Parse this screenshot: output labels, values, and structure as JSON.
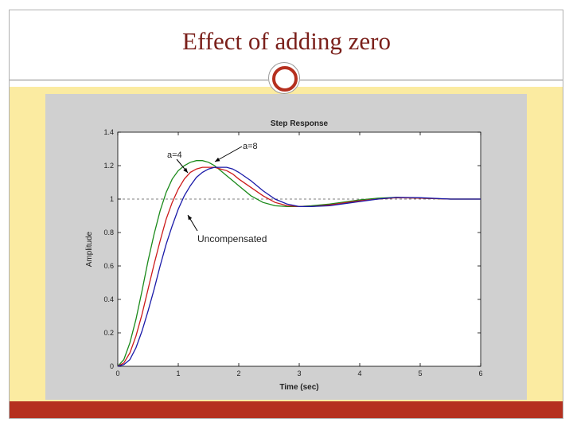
{
  "slide": {
    "title": "Effect of adding zero",
    "colors": {
      "title": "#7a1f1a",
      "accent": "#b5301f",
      "content_bg": "#fbeba1",
      "plot_bg": "#d0d0d0"
    }
  },
  "chart_data": {
    "type": "line",
    "title": "Step Response",
    "xlabel": "Time (sec)",
    "ylabel": "Amplitude",
    "xlim": [
      0,
      6
    ],
    "ylim": [
      0,
      1.4
    ],
    "xticks": [
      "0",
      "1",
      "2",
      "3",
      "4",
      "5",
      "6"
    ],
    "yticks": [
      "0",
      "0.2",
      "0.4",
      "0.6",
      "0.8",
      "1",
      "1.2",
      "1.4"
    ],
    "reference_line": {
      "y": 1,
      "style": "dashed"
    },
    "series": [
      {
        "name": "a=4",
        "color": "#1a8a1a",
        "x": [
          0,
          0.1,
          0.2,
          0.3,
          0.4,
          0.5,
          0.6,
          0.7,
          0.8,
          0.9,
          1.0,
          1.1,
          1.2,
          1.3,
          1.4,
          1.5,
          1.6,
          1.7,
          1.8,
          1.9,
          2.0,
          2.2,
          2.4,
          2.6,
          2.8,
          3.0,
          3.2,
          3.5,
          3.8,
          4.0,
          4.3,
          4.6,
          5.0,
          5.5,
          6.0
        ],
        "y": [
          0,
          0.04,
          0.14,
          0.28,
          0.45,
          0.63,
          0.79,
          0.93,
          1.04,
          1.12,
          1.17,
          1.2,
          1.22,
          1.23,
          1.23,
          1.22,
          1.2,
          1.17,
          1.14,
          1.11,
          1.08,
          1.02,
          0.98,
          0.96,
          0.955,
          0.955,
          0.96,
          0.97,
          0.985,
          0.995,
          1.005,
          1.01,
          1.005,
          1.0,
          1.0
        ]
      },
      {
        "name": "a=8",
        "color": "#cc1a1a",
        "x": [
          0,
          0.1,
          0.2,
          0.3,
          0.4,
          0.5,
          0.6,
          0.7,
          0.8,
          0.9,
          1.0,
          1.1,
          1.2,
          1.3,
          1.4,
          1.5,
          1.6,
          1.7,
          1.8,
          1.9,
          2.0,
          2.2,
          2.4,
          2.6,
          2.8,
          3.0,
          3.2,
          3.5,
          3.8,
          4.0,
          4.3,
          4.6,
          5.0,
          5.5,
          6.0
        ],
        "y": [
          0,
          0.02,
          0.08,
          0.18,
          0.31,
          0.46,
          0.61,
          0.75,
          0.88,
          0.98,
          1.06,
          1.12,
          1.16,
          1.18,
          1.19,
          1.19,
          1.19,
          1.18,
          1.17,
          1.15,
          1.12,
          1.07,
          1.02,
          0.98,
          0.96,
          0.955,
          0.955,
          0.965,
          0.98,
          0.99,
          1.0,
          1.008,
          1.005,
          1.0,
          1.0
        ]
      },
      {
        "name": "Uncompensated",
        "color": "#1a1aa8",
        "x": [
          0,
          0.1,
          0.2,
          0.3,
          0.4,
          0.5,
          0.6,
          0.7,
          0.8,
          0.9,
          1.0,
          1.1,
          1.2,
          1.3,
          1.4,
          1.5,
          1.6,
          1.7,
          1.8,
          1.9,
          2.0,
          2.2,
          2.4,
          2.6,
          2.8,
          3.0,
          3.2,
          3.5,
          3.8,
          4.0,
          4.3,
          4.6,
          5.0,
          5.5,
          6.0
        ],
        "y": [
          0,
          0.01,
          0.04,
          0.11,
          0.21,
          0.33,
          0.46,
          0.6,
          0.73,
          0.84,
          0.94,
          1.02,
          1.08,
          1.13,
          1.16,
          1.18,
          1.19,
          1.19,
          1.19,
          1.18,
          1.16,
          1.11,
          1.05,
          1.0,
          0.97,
          0.955,
          0.955,
          0.96,
          0.975,
          0.985,
          1.0,
          1.01,
          1.008,
          1.0,
          1.0
        ]
      }
    ],
    "annotations": [
      {
        "text": "a=4",
        "series": "a=4"
      },
      {
        "text": "a=8",
        "series": "a=8"
      },
      {
        "text": "Uncompensated",
        "series": "Uncompensated"
      }
    ]
  }
}
